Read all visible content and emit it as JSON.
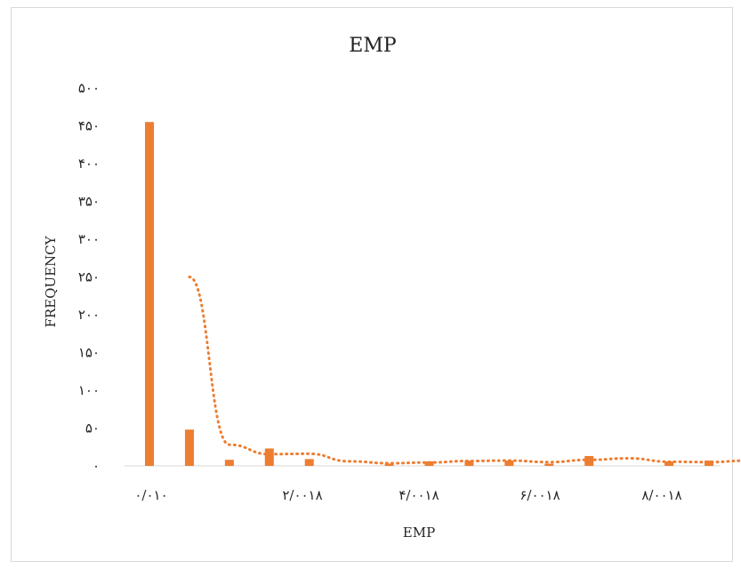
{
  "chart_data": {
    "type": "bar",
    "title": "EMP",
    "xlabel": "EMP",
    "ylabel": "FREQUENCY",
    "ylim": [
      0,
      500
    ],
    "y_ticks": [
      "۰",
      "۵۰",
      "۱۰۰",
      "۱۵۰",
      "۲۰۰",
      "۲۵۰",
      "۳۰۰",
      "۳۵۰",
      "۴۰۰",
      "۴۵۰",
      "۵۰۰"
    ],
    "x_tick_labels": [
      "۰/۰۱۰",
      "۲/۰۰۱۸",
      "۴/۰۰۱۸",
      "۶/۰۰۱۸",
      "۸/۰۰۱۸"
    ],
    "bar_count": 15,
    "bar_values": [
      455,
      48,
      8,
      23,
      9,
      0,
      3,
      6,
      7,
      7,
      3,
      13,
      0,
      6,
      7
    ],
    "trend_line": {
      "style": "dotted",
      "values": [
        250,
        28,
        15.5,
        16,
        6,
        3.5,
        4.5,
        6.5,
        7,
        5,
        8,
        10,
        5.5,
        5,
        7
      ]
    },
    "colors": {
      "bar": "#ed7d31",
      "trend": "#ed7d31",
      "gridline": "#d9d9d9"
    },
    "grid": false,
    "legend": "none"
  }
}
